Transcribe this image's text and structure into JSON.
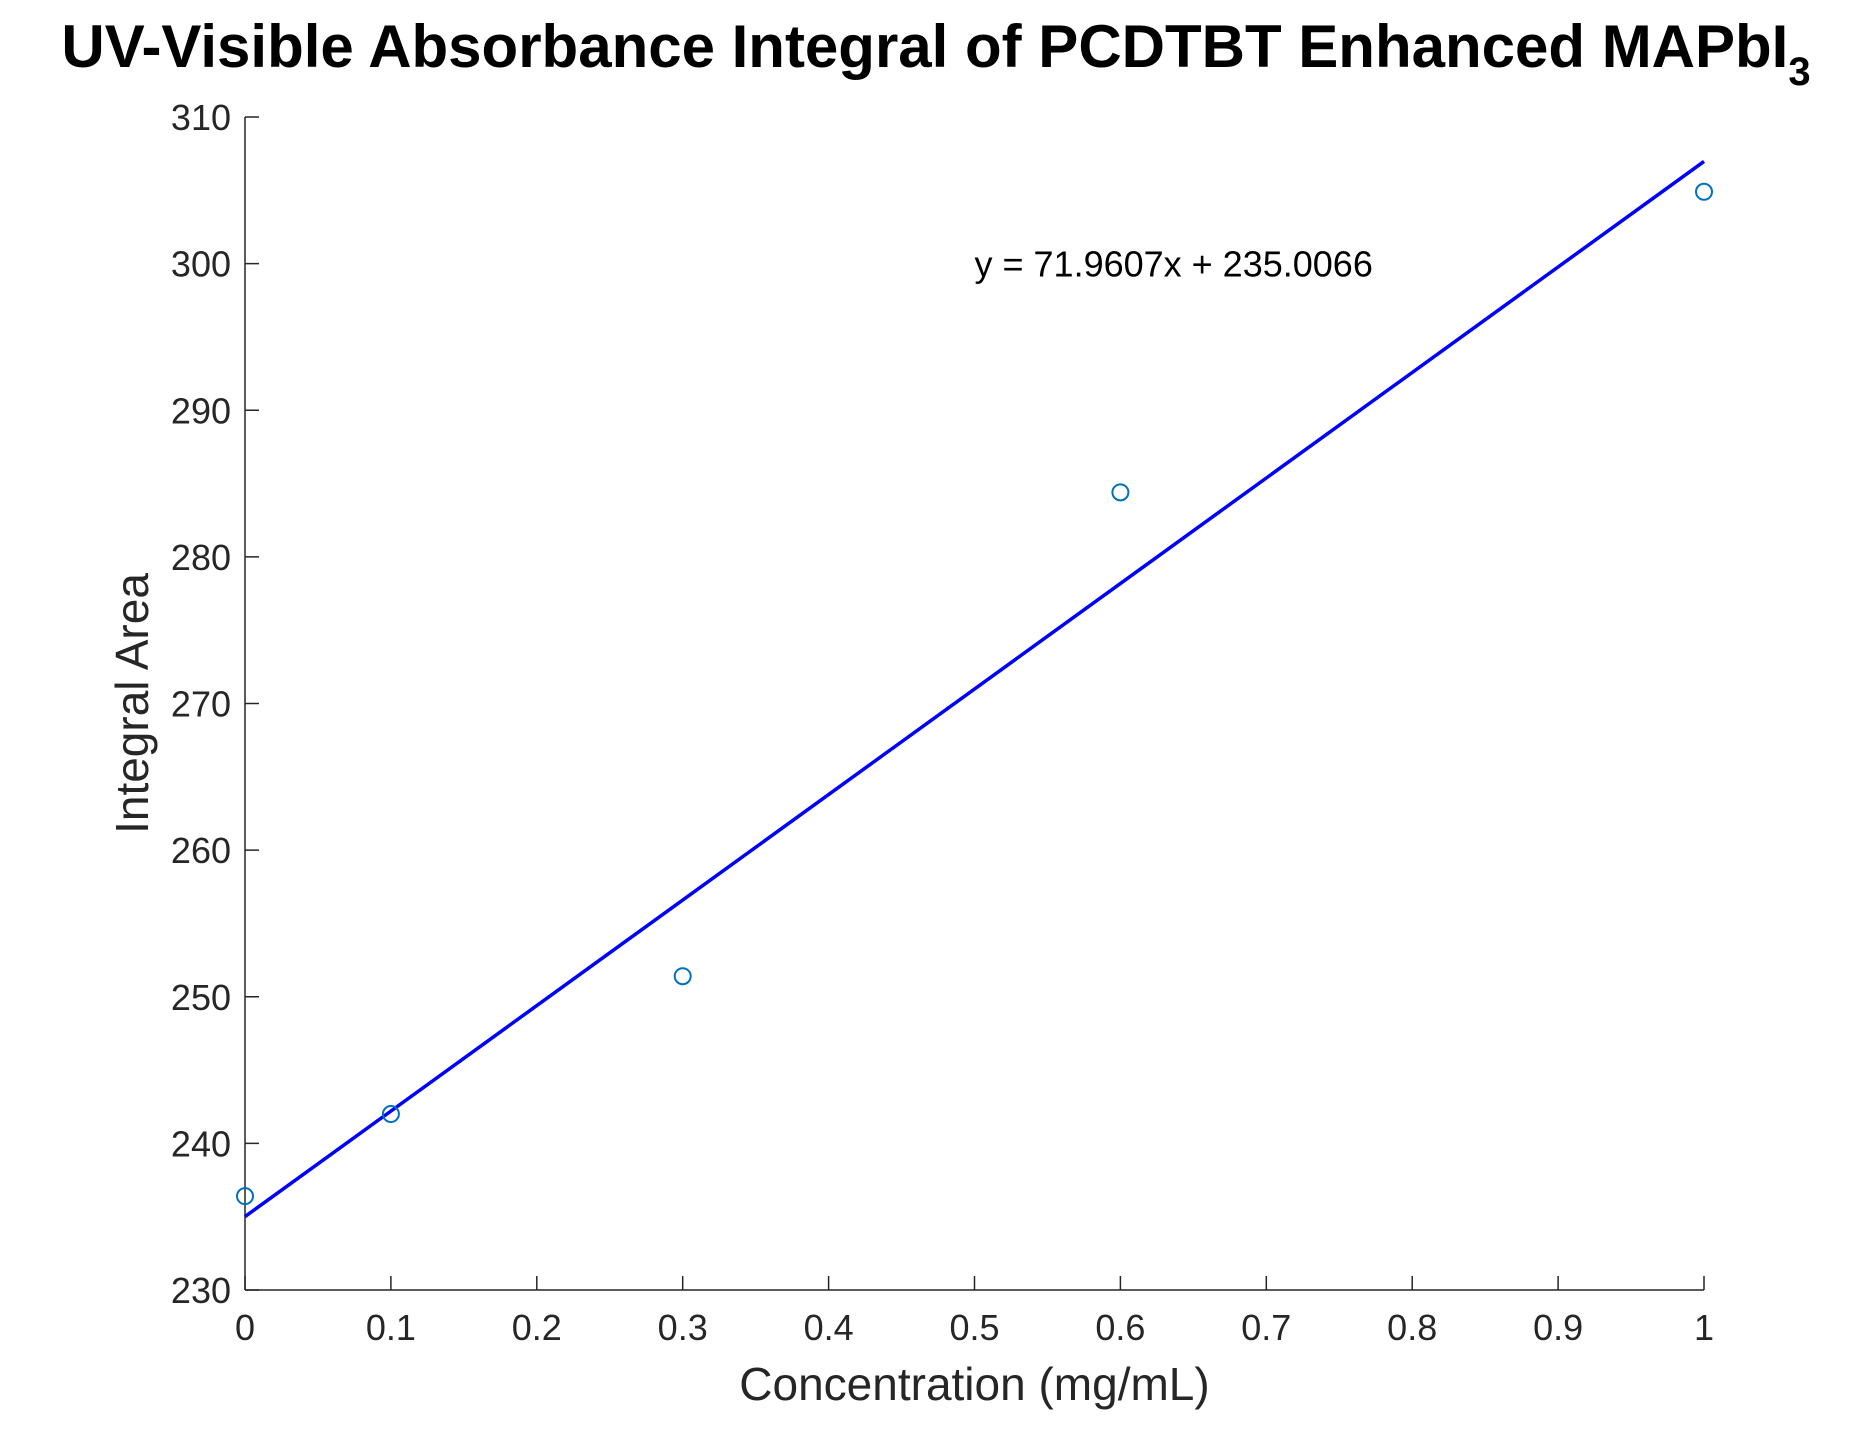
{
  "chart_data": {
    "type": "scatter",
    "title": "UV-Visible Absorbance Integral of PCDTBT Enhanced MAPbI",
    "title_subscript": "3",
    "xlabel": "Concentration (mg/mL)",
    "ylabel": "Integral Area",
    "xlim": [
      0,
      1
    ],
    "ylim": [
      230,
      310
    ],
    "xticks": [
      "0",
      "0.1",
      "0.2",
      "0.3",
      "0.4",
      "0.5",
      "0.6",
      "0.7",
      "0.8",
      "0.9",
      "1"
    ],
    "yticks": [
      "230",
      "240",
      "250",
      "260",
      "270",
      "280",
      "290",
      "300",
      "310"
    ],
    "grid": false,
    "series": [
      {
        "type": "scatter",
        "marker": "circle-open",
        "color": "#0072BD",
        "points": [
          {
            "x": 0,
            "y": 236.4
          },
          {
            "x": 0.1,
            "y": 242.0
          },
          {
            "x": 0.3,
            "y": 251.4
          },
          {
            "x": 0.6,
            "y": 284.4
          },
          {
            "x": 1,
            "y": 304.9
          }
        ]
      },
      {
        "type": "line",
        "color": "#0000ff",
        "slope": 71.9607,
        "intercept": 235.0066,
        "x_range": [
          0,
          1
        ]
      }
    ],
    "annotations": [
      {
        "text": "y = 71.9607x + 235.0066",
        "x": 0.5,
        "y": 300
      }
    ]
  }
}
